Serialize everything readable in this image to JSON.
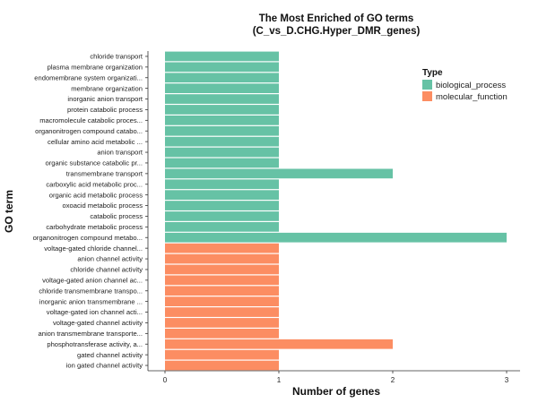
{
  "chart_data": {
    "type": "bar",
    "orientation": "horizontal",
    "title": "The Most Enriched of GO terms",
    "subtitle": "(C_vs_D.CHG.Hyper_DMR_genes)",
    "xlabel": "Number of genes",
    "ylabel": "GO term",
    "xlim": [
      0,
      3.15
    ],
    "xticks": [
      "0",
      "1",
      "2",
      "3"
    ],
    "grid": false,
    "legend": {
      "title": "Type",
      "placement": "top-right",
      "entries": [
        {
          "label": "biological_process",
          "color": "#66C2A5"
        },
        {
          "label": "molecular_function",
          "color": "#FC8D62"
        }
      ]
    },
    "categories": [
      "chloride transport",
      "plasma membrane organization",
      "endomembrane system organizati...",
      "membrane organization",
      "inorganic anion transport",
      "protein catabolic process",
      "macromolecule catabolic proces...",
      "organonitrogen compound catabo...",
      "cellular amino acid metabolic ...",
      "anion transport",
      "organic substance catabolic pr...",
      "transmembrane transport",
      "carboxylic acid metabolic proc...",
      "organic acid metabolic process",
      "oxoacid metabolic process",
      "catabolic process",
      "carbohydrate metabolic process",
      "organonitrogen compound metabo...",
      "voltage-gated chloride channel...",
      "anion channel activity",
      "chloride channel activity",
      "voltage-gated anion channel ac...",
      "chloride transmembrane transpo...",
      "inorganic anion transmembrane ...",
      "voltage-gated ion channel acti...",
      "voltage-gated channel activity",
      "anion transmembrane transporte...",
      "phosphotransferase activity, a...",
      "gated channel activity",
      "ion gated channel activity"
    ],
    "values": [
      1,
      1,
      1,
      1,
      1,
      1,
      1,
      1,
      1,
      1,
      1,
      2,
      1,
      1,
      1,
      1,
      1,
      3,
      1,
      1,
      1,
      1,
      1,
      1,
      1,
      1,
      1,
      2,
      1,
      1
    ],
    "types": [
      "biological_process",
      "biological_process",
      "biological_process",
      "biological_process",
      "biological_process",
      "biological_process",
      "biological_process",
      "biological_process",
      "biological_process",
      "biological_process",
      "biological_process",
      "biological_process",
      "biological_process",
      "biological_process",
      "biological_process",
      "biological_process",
      "biological_process",
      "biological_process",
      "molecular_function",
      "molecular_function",
      "molecular_function",
      "molecular_function",
      "molecular_function",
      "molecular_function",
      "molecular_function",
      "molecular_function",
      "molecular_function",
      "molecular_function",
      "molecular_function",
      "molecular_function"
    ]
  }
}
